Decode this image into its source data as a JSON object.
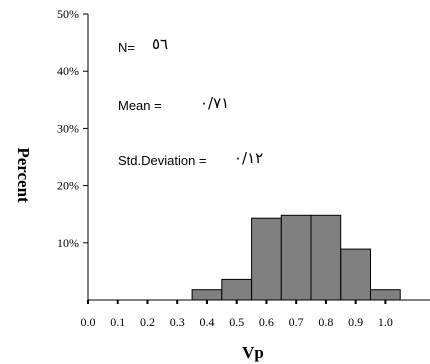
{
  "chart_data": {
    "type": "bar",
    "title": "",
    "xlabel": "Vp",
    "ylabel": "Percent",
    "bin_width": 0.1,
    "bins": [
      {
        "start": 0.35,
        "end": 0.45,
        "percent": 1.8
      },
      {
        "start": 0.45,
        "end": 0.55,
        "percent": 3.6
      },
      {
        "start": 0.55,
        "end": 0.65,
        "percent": 14.3
      },
      {
        "start": 0.65,
        "end": 0.75,
        "percent": 14.8
      },
      {
        "start": 0.75,
        "end": 0.85,
        "percent": 14.8
      },
      {
        "start": 0.85,
        "end": 0.95,
        "percent": 8.9
      },
      {
        "start": 0.95,
        "end": 1.05,
        "percent": 1.8
      }
    ],
    "xlim": [
      0.0,
      1.15
    ],
    "ylim": [
      0,
      50
    ],
    "x_ticks": [
      "0.0",
      "0.1",
      "0.2",
      "0.3",
      "0.4",
      "0.5",
      "0.6",
      "0.7",
      "0.8",
      "0.9",
      "1.0"
    ],
    "y_ticks": [
      "10%",
      "20%",
      "30%",
      "40%",
      "50%"
    ],
    "y_tick_values": [
      10,
      20,
      30,
      40,
      50
    ],
    "bar_color": "#808080",
    "grid": false,
    "annotations": {
      "n_label": "N=",
      "n_value": "٥٦",
      "mean_label": "Mean =",
      "mean_value": "٠/٧١",
      "std_label": "Std.Deviation =",
      "std_value": "٠/١٢"
    }
  }
}
